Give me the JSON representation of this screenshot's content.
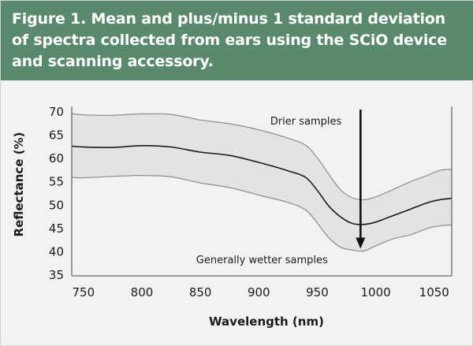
{
  "figure": {
    "title": "Figure 1. Mean and plus/minus 1 standard deviation of spectra collected from ears using the SCiO device and scanning accessory."
  },
  "colors": {
    "header_bg": "#5a8a6e",
    "panel_bg": "#f2f3f1",
    "band_fill": "#e3e3e3",
    "band_edge": "#8c8c8c",
    "mean_line": "#1a1a1a"
  },
  "chart_data": {
    "type": "area",
    "title": "",
    "xlabel": "Wavelength (nm)",
    "ylabel": "Reflectance (%)",
    "xlim": [
      740,
      1065
    ],
    "ylim": [
      35,
      70
    ],
    "xticks": [
      750,
      800,
      850,
      900,
      950,
      1000,
      1050
    ],
    "yticks": [
      35,
      40,
      45,
      50,
      55,
      60,
      65,
      70
    ],
    "grid": false,
    "legend": "none",
    "x": [
      740,
      750,
      775,
      800,
      825,
      850,
      875,
      900,
      925,
      940,
      950,
      960,
      970,
      980,
      990,
      1000,
      1015,
      1030,
      1045,
      1055,
      1065
    ],
    "series": [
      {
        "name": "Mean",
        "values": [
          62.5,
          62.3,
          62.2,
          62.6,
          62.3,
          61.2,
          60.5,
          59.0,
          57.2,
          55.8,
          53.0,
          49.6,
          47.3,
          45.9,
          45.7,
          46.2,
          47.6,
          49.0,
          50.4,
          51.0,
          51.3
        ]
      },
      {
        "name": "Mean + 1 SD",
        "values": [
          69.5,
          69.2,
          69.1,
          69.4,
          69.3,
          68.1,
          67.3,
          66.0,
          64.2,
          62.7,
          60.0,
          56.4,
          53.1,
          51.4,
          51.0,
          51.6,
          53.2,
          54.9,
          56.3,
          57.3,
          57.5
        ]
      },
      {
        "name": "Mean - 1 SD",
        "values": [
          55.8,
          55.7,
          56.0,
          56.2,
          55.9,
          54.6,
          53.6,
          52.0,
          50.4,
          48.8,
          46.0,
          42.8,
          40.8,
          40.2,
          40.0,
          41.1,
          42.6,
          43.5,
          44.9,
          45.4,
          45.6
        ]
      }
    ],
    "annotations": [
      {
        "text": "Drier samples",
        "position": "above arrow, left"
      },
      {
        "text": "Generally wetter samples",
        "position": "below, left of arrow"
      }
    ],
    "arrow": {
      "x": 987,
      "from_y": 70,
      "to_y": 40.5
    }
  }
}
